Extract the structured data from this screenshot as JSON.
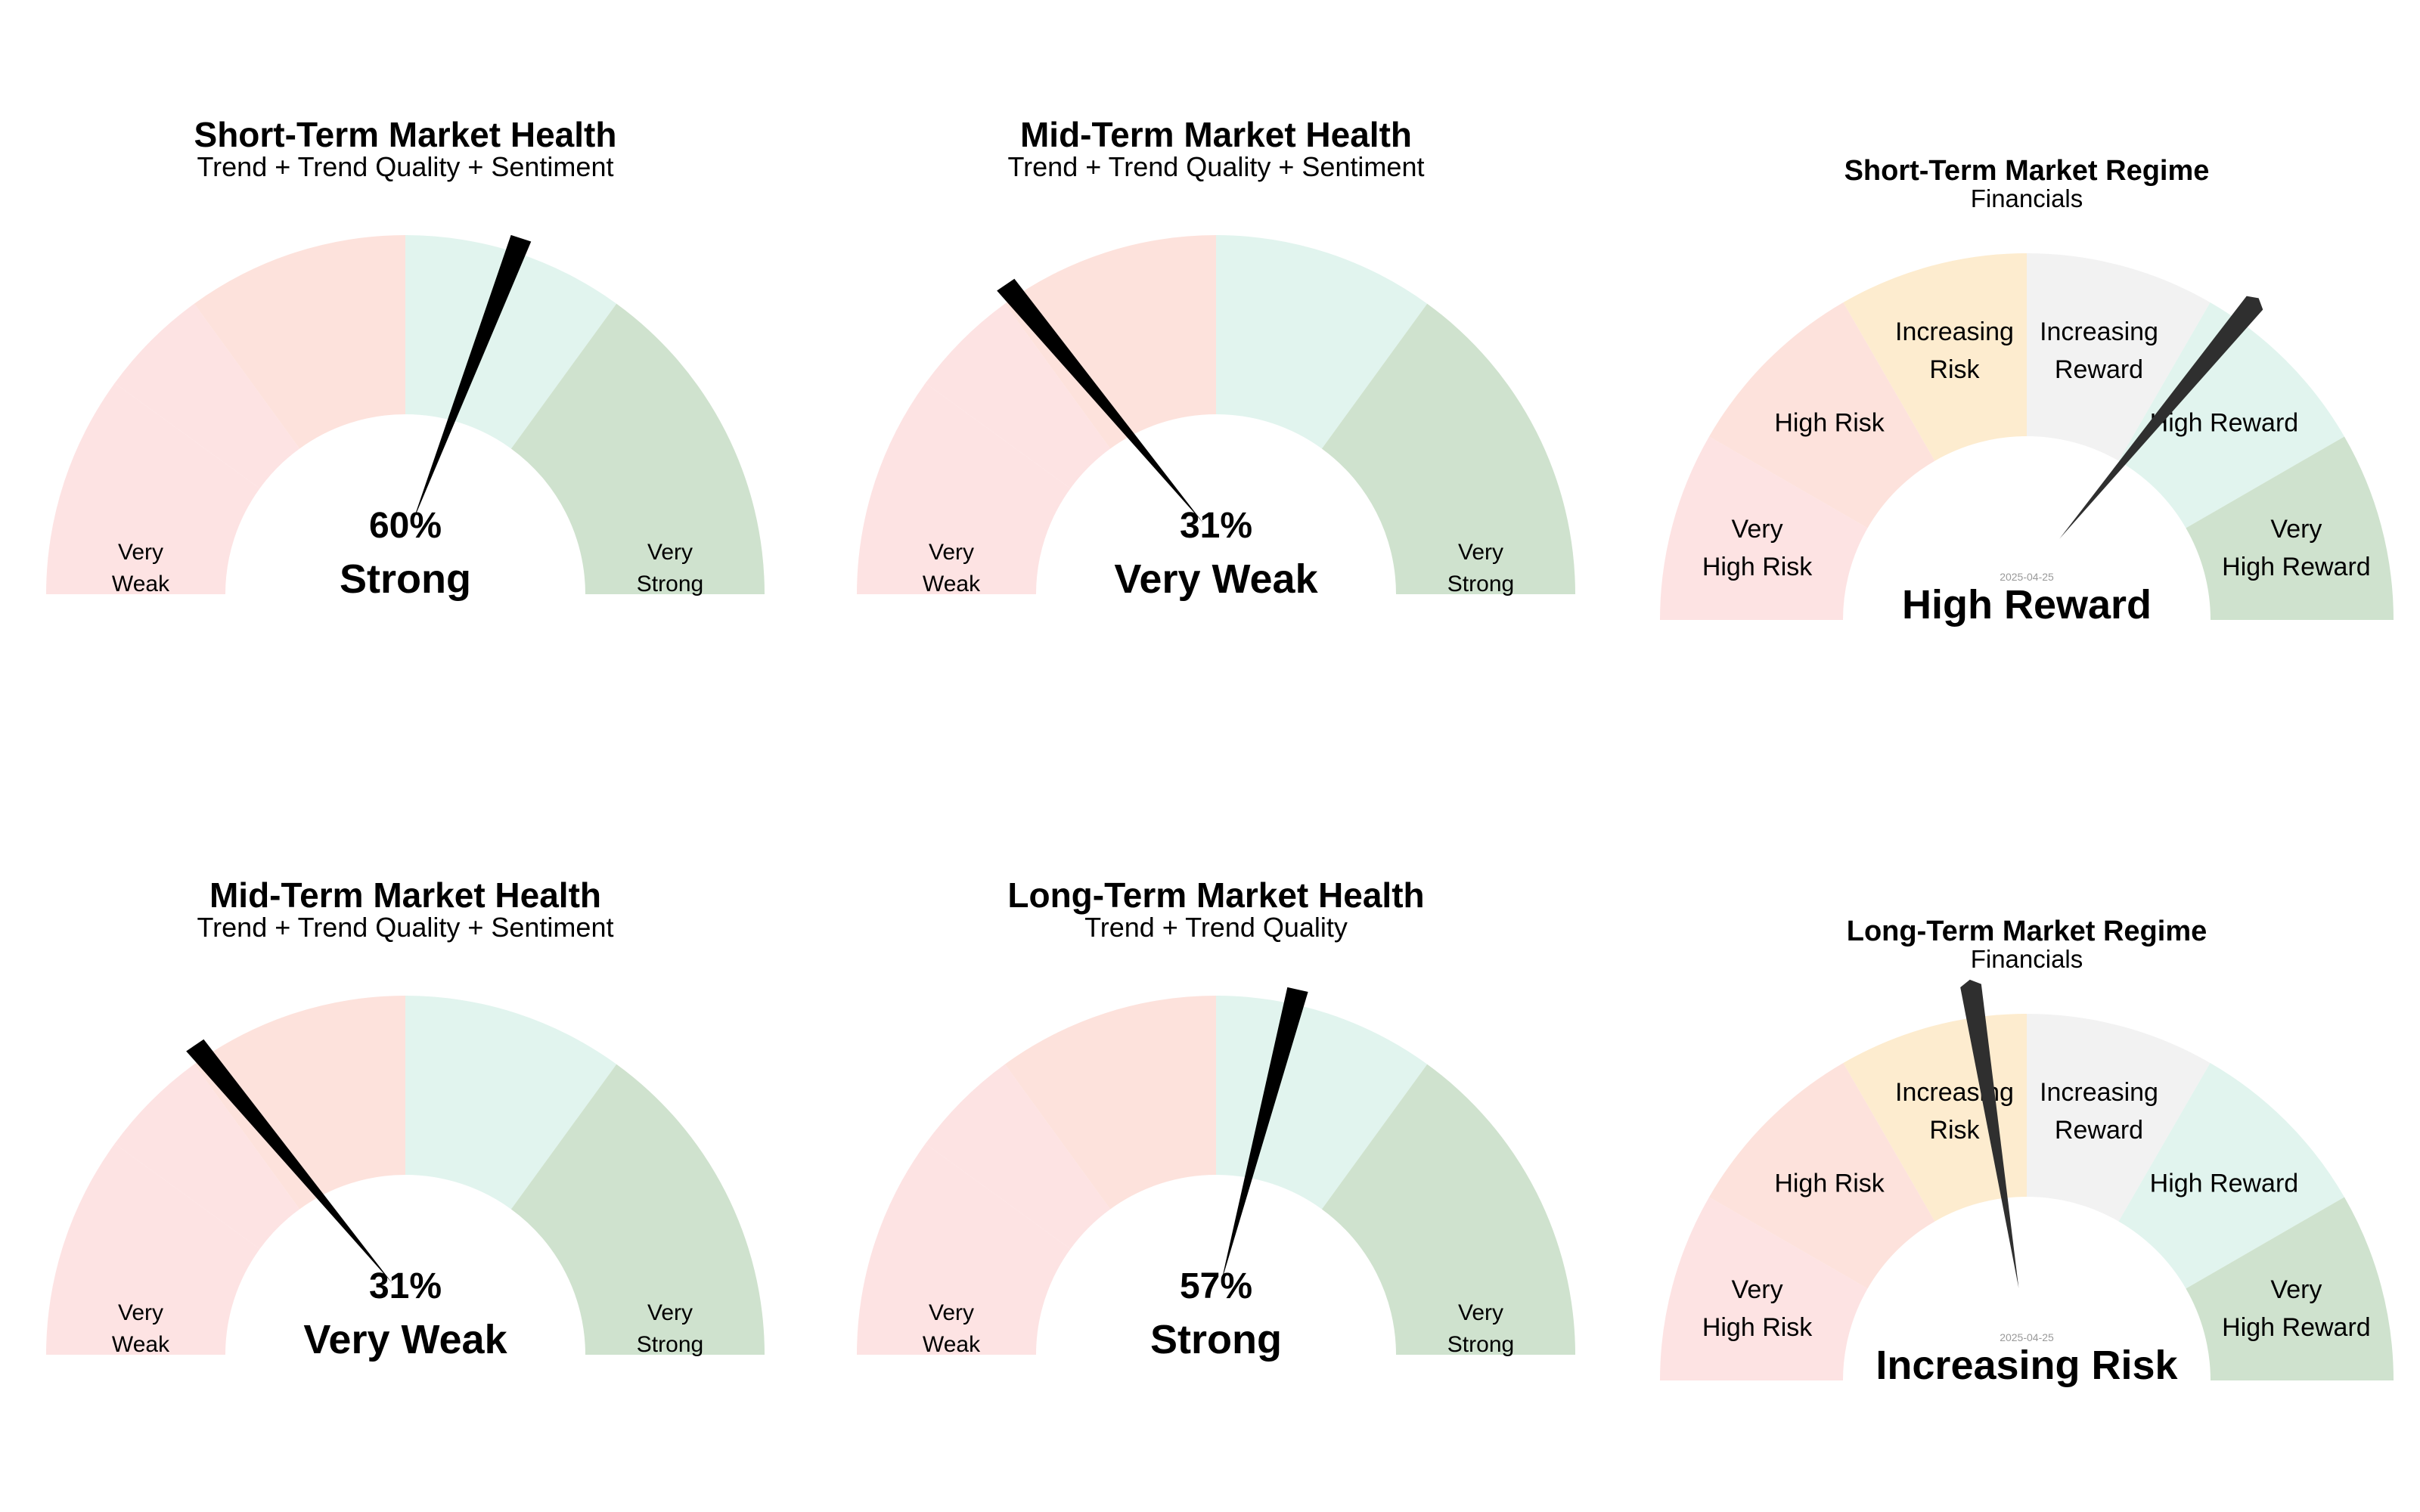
{
  "colors": {
    "very_weak": "#fde3e3",
    "weak": "#fde2dc",
    "strong": "#e1f4ee",
    "very_strong": "#cfe2ce",
    "increasing_risk": "#fdeccf",
    "increasing_reward": "#f2f2f2",
    "health_needle": "#000000",
    "regime_needle": "#2f2f2f",
    "date_text": "#999999"
  },
  "chart_data": [
    {
      "type": "gauge",
      "kind": "health",
      "title": "Short-Term Market Health",
      "subtitle": "Trend + Trend Quality + Sentiment",
      "value": 60,
      "value_label": "60%",
      "status": "Strong",
      "range": [
        0,
        100
      ],
      "bands": [
        {
          "from": 0,
          "to": 20,
          "label": "Very\nWeak",
          "color_key": "very_weak"
        },
        {
          "from": 20,
          "to": 30,
          "label": "",
          "color_key": "very_weak"
        },
        {
          "from": 30,
          "to": 50,
          "label": "",
          "color_key": "weak"
        },
        {
          "from": 50,
          "to": 70,
          "label": "",
          "color_key": "strong"
        },
        {
          "from": 70,
          "to": 100,
          "label": "Very\nStrong",
          "color_key": "very_strong"
        }
      ]
    },
    {
      "type": "gauge",
      "kind": "health",
      "title": "Mid-Term Market Health",
      "subtitle": "Trend + Trend Quality + Sentiment",
      "value": 31,
      "value_label": "31%",
      "status": "Very Weak",
      "range": [
        0,
        100
      ],
      "bands": [
        {
          "from": 0,
          "to": 20,
          "label": "Very\nWeak",
          "color_key": "very_weak"
        },
        {
          "from": 20,
          "to": 30,
          "label": "",
          "color_key": "very_weak"
        },
        {
          "from": 30,
          "to": 50,
          "label": "",
          "color_key": "weak"
        },
        {
          "from": 50,
          "to": 70,
          "label": "",
          "color_key": "strong"
        },
        {
          "from": 70,
          "to": 100,
          "label": "Very\nStrong",
          "color_key": "very_strong"
        }
      ]
    },
    {
      "type": "gauge",
      "kind": "regime",
      "title": "Short-Term Market Regime",
      "subtitle": "Financials",
      "value": 72,
      "status": "High Reward",
      "date": "2025-04-25",
      "range": [
        0,
        100
      ],
      "bands": [
        {
          "from": 0,
          "to": 16.67,
          "label": "Very\nHigh Risk",
          "color_key": "very_weak"
        },
        {
          "from": 16.67,
          "to": 33.33,
          "label": "High Risk",
          "color_key": "weak"
        },
        {
          "from": 33.33,
          "to": 50,
          "label": "Increasing\nRisk",
          "color_key": "increasing_risk"
        },
        {
          "from": 50,
          "to": 66.67,
          "label": "Increasing\nReward",
          "color_key": "increasing_reward"
        },
        {
          "from": 66.67,
          "to": 83.33,
          "label": "High Reward",
          "color_key": "strong"
        },
        {
          "from": 83.33,
          "to": 100,
          "label": "Very\nHigh Reward",
          "color_key": "very_strong"
        }
      ]
    },
    {
      "type": "gauge",
      "kind": "health",
      "title": "Mid-Term Market Health",
      "subtitle": "Trend + Trend Quality + Sentiment",
      "value": 31,
      "value_label": "31%",
      "status": "Very Weak",
      "range": [
        0,
        100
      ],
      "bands": [
        {
          "from": 0,
          "to": 20,
          "label": "Very\nWeak",
          "color_key": "very_weak"
        },
        {
          "from": 20,
          "to": 30,
          "label": "",
          "color_key": "very_weak"
        },
        {
          "from": 30,
          "to": 50,
          "label": "",
          "color_key": "weak"
        },
        {
          "from": 50,
          "to": 70,
          "label": "",
          "color_key": "strong"
        },
        {
          "from": 70,
          "to": 100,
          "label": "Very\nStrong",
          "color_key": "very_strong"
        }
      ]
    },
    {
      "type": "gauge",
      "kind": "health",
      "title": "Long-Term Market Health",
      "subtitle": "Trend + Trend Quality",
      "value": 57,
      "value_label": "57%",
      "status": "Strong",
      "range": [
        0,
        100
      ],
      "bands": [
        {
          "from": 0,
          "to": 20,
          "label": "Very\nWeak",
          "color_key": "very_weak"
        },
        {
          "from": 20,
          "to": 30,
          "label": "",
          "color_key": "very_weak"
        },
        {
          "from": 30,
          "to": 50,
          "label": "",
          "color_key": "weak"
        },
        {
          "from": 50,
          "to": 70,
          "label": "",
          "color_key": "strong"
        },
        {
          "from": 70,
          "to": 100,
          "label": "Very\nStrong",
          "color_key": "very_strong"
        }
      ]
    },
    {
      "type": "gauge",
      "kind": "regime",
      "title": "Long-Term Market Regime",
      "subtitle": "Financials",
      "value": 45,
      "status": "Increasing Risk",
      "date": "2025-04-25",
      "range": [
        0,
        100
      ],
      "bands": [
        {
          "from": 0,
          "to": 16.67,
          "label": "Very\nHigh Risk",
          "color_key": "very_weak"
        },
        {
          "from": 16.67,
          "to": 33.33,
          "label": "High Risk",
          "color_key": "weak"
        },
        {
          "from": 33.33,
          "to": 50,
          "label": "Increasing\nRisk",
          "color_key": "increasing_risk"
        },
        {
          "from": 50,
          "to": 66.67,
          "label": "Increasing\nReward",
          "color_key": "increasing_reward"
        },
        {
          "from": 66.67,
          "to": 83.33,
          "label": "High Reward",
          "color_key": "strong"
        },
        {
          "from": 83.33,
          "to": 100,
          "label": "Very\nHigh Reward",
          "color_key": "very_strong"
        }
      ]
    }
  ]
}
